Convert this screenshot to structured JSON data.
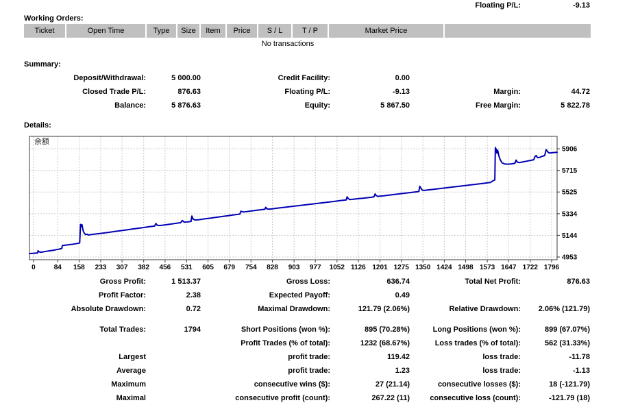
{
  "account": {
    "floating_pl_label": "Floating P/L:",
    "floating_pl_value": "-9.13"
  },
  "working_orders": {
    "title": "Working Orders:",
    "columns": [
      "Ticket",
      "Open Time",
      "Type",
      "Size",
      "Item",
      "Price",
      "S / L",
      "T / P",
      "Market Price",
      ""
    ],
    "empty_message": "No transactions"
  },
  "summary": {
    "title": "Summary:",
    "row1": {
      "l1": "Deposit/Withdrawal:",
      "v1": "5 000.00",
      "l2": "Credit Facility:",
      "v2": "0.00"
    },
    "row2": {
      "l1": "Closed Trade P/L:",
      "v1": "876.63",
      "l2": "Floating P/L:",
      "v2": "-9.13",
      "l3": "Margin:",
      "v3": "44.72"
    },
    "row3": {
      "l1": "Balance:",
      "v1": "5 876.63",
      "l2": "Equity:",
      "v2": "5 867.50",
      "l3": "Free Margin:",
      "v3": "5 822.78"
    }
  },
  "details": {
    "title": "Details:"
  },
  "chart_data": {
    "type": "line",
    "series_label": "余额",
    "title": "",
    "xlabel": "",
    "ylabel": "",
    "x_ticks": [
      0,
      84,
      158,
      233,
      307,
      382,
      456,
      531,
      605,
      679,
      754,
      828,
      903,
      977,
      1052,
      1126,
      1201,
      1275,
      1350,
      1424,
      1498,
      1573,
      1647,
      1722,
      1796
    ],
    "y_ticks": [
      4953,
      5144,
      5334,
      5525,
      5715,
      5906
    ],
    "x_range": [
      -14,
      1815
    ],
    "y_range": [
      4929,
      6015
    ],
    "line_color": "#0000b4",
    "grid": "dashed",
    "points": [
      [
        -14,
        4983
      ],
      [
        0,
        4986
      ],
      [
        10,
        4988
      ],
      [
        14,
        4988
      ],
      [
        16,
        5008
      ],
      [
        20,
        4998
      ],
      [
        25,
        4995
      ],
      [
        32,
        4998
      ],
      [
        45,
        5003
      ],
      [
        58,
        5008
      ],
      [
        70,
        5013
      ],
      [
        80,
        5018
      ],
      [
        88,
        5022
      ],
      [
        95,
        5026
      ],
      [
        98,
        5028
      ],
      [
        100,
        5054
      ],
      [
        106,
        5056
      ],
      [
        115,
        5059
      ],
      [
        125,
        5062
      ],
      [
        135,
        5065
      ],
      [
        145,
        5069
      ],
      [
        152,
        5072
      ],
      [
        157,
        5075
      ],
      [
        160,
        5077
      ],
      [
        163,
        5240
      ],
      [
        166,
        5222
      ],
      [
        168,
        5238
      ],
      [
        172,
        5185
      ],
      [
        176,
        5162
      ],
      [
        181,
        5150
      ],
      [
        186,
        5154
      ],
      [
        190,
        5146
      ],
      [
        196,
        5149
      ],
      [
        205,
        5152
      ],
      [
        220,
        5157
      ],
      [
        240,
        5163
      ],
      [
        260,
        5170
      ],
      [
        280,
        5177
      ],
      [
        300,
        5184
      ],
      [
        320,
        5191
      ],
      [
        340,
        5198
      ],
      [
        360,
        5205
      ],
      [
        380,
        5212
      ],
      [
        400,
        5219
      ],
      [
        415,
        5224
      ],
      [
        420,
        5225
      ],
      [
        424,
        5248
      ],
      [
        429,
        5232
      ],
      [
        436,
        5230
      ],
      [
        448,
        5233
      ],
      [
        465,
        5239
      ],
      [
        482,
        5245
      ],
      [
        498,
        5251
      ],
      [
        510,
        5255
      ],
      [
        516,
        5274
      ],
      [
        522,
        5260
      ],
      [
        530,
        5261
      ],
      [
        540,
        5264
      ],
      [
        546,
        5266
      ],
      [
        549,
        5314
      ],
      [
        553,
        5288
      ],
      [
        558,
        5281
      ],
      [
        565,
        5279
      ],
      [
        575,
        5282
      ],
      [
        595,
        5289
      ],
      [
        615,
        5296
      ],
      [
        635,
        5303
      ],
      [
        655,
        5310
      ],
      [
        675,
        5317
      ],
      [
        695,
        5324
      ],
      [
        710,
        5329
      ],
      [
        715,
        5330
      ],
      [
        719,
        5356
      ],
      [
        725,
        5350
      ],
      [
        732,
        5351
      ],
      [
        742,
        5354
      ],
      [
        757,
        5359
      ],
      [
        772,
        5364
      ],
      [
        787,
        5369
      ],
      [
        797,
        5372
      ],
      [
        802,
        5373
      ],
      [
        805,
        5390
      ],
      [
        810,
        5376
      ],
      [
        816,
        5374
      ],
      [
        828,
        5377
      ],
      [
        842,
        5382
      ],
      [
        858,
        5387
      ],
      [
        878,
        5393
      ],
      [
        898,
        5399
      ],
      [
        918,
        5405
      ],
      [
        938,
        5411
      ],
      [
        958,
        5417
      ],
      [
        978,
        5423
      ],
      [
        998,
        5429
      ],
      [
        1018,
        5435
      ],
      [
        1038,
        5441
      ],
      [
        1050,
        5445
      ],
      [
        1062,
        5449
      ],
      [
        1078,
        5454
      ],
      [
        1084,
        5455
      ],
      [
        1087,
        5482
      ],
      [
        1091,
        5468
      ],
      [
        1096,
        5459
      ],
      [
        1103,
        5460
      ],
      [
        1113,
        5463
      ],
      [
        1128,
        5467
      ],
      [
        1143,
        5471
      ],
      [
        1158,
        5475
      ],
      [
        1172,
        5479
      ],
      [
        1180,
        5482
      ],
      [
        1184,
        5508
      ],
      [
        1188,
        5494
      ],
      [
        1194,
        5486
      ],
      [
        1199,
        5488
      ],
      [
        1214,
        5492
      ],
      [
        1229,
        5497
      ],
      [
        1249,
        5503
      ],
      [
        1269,
        5509
      ],
      [
        1289,
        5515
      ],
      [
        1309,
        5521
      ],
      [
        1329,
        5527
      ],
      [
        1336,
        5530
      ],
      [
        1339,
        5576
      ],
      [
        1343,
        5558
      ],
      [
        1347,
        5543
      ],
      [
        1352,
        5539
      ],
      [
        1359,
        5541
      ],
      [
        1379,
        5547
      ],
      [
        1399,
        5553
      ],
      [
        1419,
        5559
      ],
      [
        1439,
        5565
      ],
      [
        1459,
        5571
      ],
      [
        1479,
        5577
      ],
      [
        1499,
        5583
      ],
      [
        1519,
        5589
      ],
      [
        1539,
        5595
      ],
      [
        1559,
        5601
      ],
      [
        1574,
        5606
      ],
      [
        1584,
        5609
      ],
      [
        1590,
        5620
      ],
      [
        1594,
        5626
      ],
      [
        1597,
        5629
      ],
      [
        1599,
        5631
      ],
      [
        1601,
        5916
      ],
      [
        1604,
        5900
      ],
      [
        1606,
        5868
      ],
      [
        1609,
        5893
      ],
      [
        1613,
        5843
      ],
      [
        1618,
        5808
      ],
      [
        1624,
        5783
      ],
      [
        1632,
        5773
      ],
      [
        1642,
        5770
      ],
      [
        1654,
        5772
      ],
      [
        1664,
        5776
      ],
      [
        1669,
        5779
      ],
      [
        1673,
        5806
      ],
      [
        1677,
        5788
      ],
      [
        1684,
        5784
      ],
      [
        1692,
        5788
      ],
      [
        1702,
        5793
      ],
      [
        1714,
        5799
      ],
      [
        1724,
        5804
      ],
      [
        1734,
        5809
      ],
      [
        1739,
        5840
      ],
      [
        1743,
        5846
      ],
      [
        1746,
        5830
      ],
      [
        1752,
        5828
      ],
      [
        1758,
        5834
      ],
      [
        1764,
        5840
      ],
      [
        1772,
        5846
      ],
      [
        1777,
        5898
      ],
      [
        1781,
        5884
      ],
      [
        1785,
        5872
      ],
      [
        1791,
        5868
      ],
      [
        1797,
        5871
      ],
      [
        1806,
        5873
      ],
      [
        1815,
        5875
      ]
    ]
  },
  "stats": {
    "row1": {
      "l1": "Gross Profit:",
      "v1": "1 513.37",
      "l2": "Gross Loss:",
      "v2": "636.74",
      "l3": "Total Net Profit:",
      "v3": "876.63"
    },
    "row2": {
      "l1": "Profit Factor:",
      "v1": "2.38",
      "l2": "Expected Payoff:",
      "v2": "0.49"
    },
    "row3": {
      "l1": "Absolute Drawdown:",
      "v1": "0.72",
      "l2": "Maximal Drawdown:",
      "v2": "121.79 (2.06%)",
      "l3": "Relative Drawdown:",
      "v3": "2.06% (121.79)"
    },
    "row4": {
      "l1": "Total Trades:",
      "v1": "1794",
      "l2": "Short Positions (won %):",
      "v2": "895 (70.28%)",
      "l3": "Long Positions (won %):",
      "v3": "899 (67.07%)"
    },
    "row5": {
      "l2": "Profit Trades (% of total):",
      "v2": "1232 (68.67%)",
      "l3": "Loss trades (% of total):",
      "v3": "562 (31.33%)"
    },
    "row6": {
      "l1": "Largest",
      "l2": "profit trade:",
      "v2": "119.42",
      "l3": "loss trade:",
      "v3": "-11.78"
    },
    "row7": {
      "l1": "Average",
      "l2": "profit trade:",
      "v2": "1.23",
      "l3": "loss trade:",
      "v3": "-1.13"
    },
    "row8": {
      "l1": "Maximum",
      "l2": "consecutive wins ($):",
      "v2": "27 (21.14)",
      "l3": "consecutive losses ($):",
      "v3": "18 (-121.79)"
    },
    "row9": {
      "l1": "Maximal",
      "l2": "consecutive profit (count):",
      "v2": "267.22 (11)",
      "l3": "consecutive loss (count):",
      "v3": "-121.79 (18)"
    }
  }
}
